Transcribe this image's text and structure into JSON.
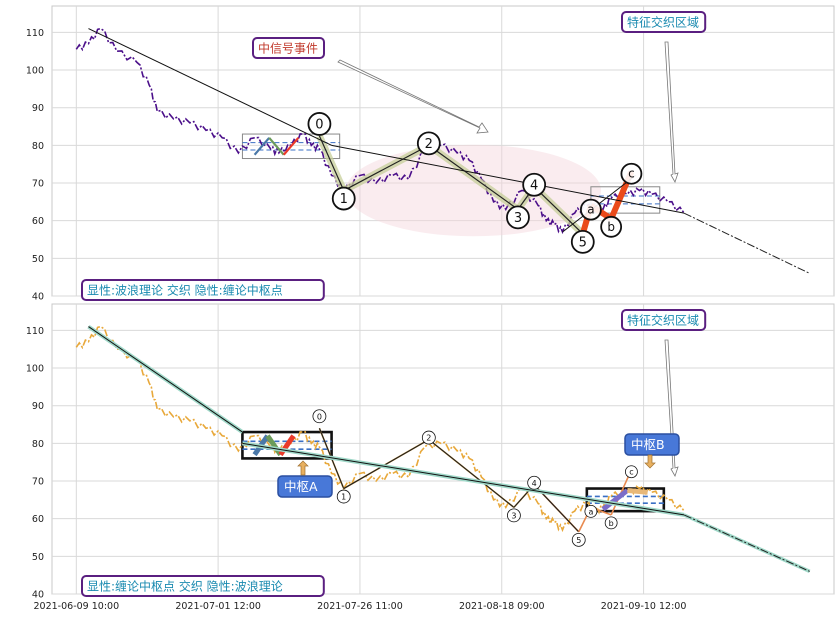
{
  "chart_data": [
    {
      "type": "line",
      "panel": "top",
      "ylim": [
        40,
        117
      ],
      "yticks": [
        40,
        50,
        60,
        70,
        80,
        90,
        100,
        110
      ],
      "grid": true,
      "price_color": "#4b0f8a",
      "price": [
        [
          0,
          105.5
        ],
        [
          3,
          107
        ],
        [
          6,
          111
        ],
        [
          10,
          105
        ],
        [
          15,
          102
        ],
        [
          18,
          96
        ],
        [
          20,
          89
        ],
        [
          24,
          87
        ],
        [
          28,
          86
        ],
        [
          32,
          84
        ],
        [
          36,
          82
        ],
        [
          40,
          78
        ],
        [
          44,
          82
        ],
        [
          48,
          79
        ],
        [
          50,
          78
        ],
        [
          53,
          80
        ],
        [
          56,
          83
        ],
        [
          58,
          80
        ],
        [
          60,
          79
        ],
        [
          63,
          72
        ],
        [
          66,
          68
        ],
        [
          70,
          72
        ],
        [
          74,
          70
        ],
        [
          78,
          72
        ],
        [
          82,
          71
        ],
        [
          86,
          79
        ],
        [
          90,
          80
        ],
        [
          94,
          78
        ],
        [
          97,
          76
        ],
        [
          100,
          71
        ],
        [
          103,
          65
        ],
        [
          106,
          63
        ],
        [
          110,
          68
        ],
        [
          114,
          64
        ],
        [
          116,
          60
        ],
        [
          118,
          59
        ],
        [
          120,
          57
        ],
        [
          123,
          62
        ],
        [
          126,
          64
        ],
        [
          128,
          62
        ],
        [
          130,
          63
        ],
        [
          132,
          66
        ],
        [
          136,
          67
        ],
        [
          139,
          68
        ],
        [
          142,
          67
        ],
        [
          146,
          65
        ],
        [
          150,
          62
        ]
      ],
      "trend_lines": [
        {
          "from": [
            3,
            111
          ],
          "to": [
            63,
            80
          ],
          "color": "#111111"
        },
        {
          "from": [
            63,
            80
          ],
          "to": [
            150,
            62
          ],
          "color": "#111111"
        },
        {
          "from": [
            120,
            57
          ],
          "to": [
            138,
            72
          ],
          "color": "#111111"
        }
      ],
      "projection": {
        "from": [
          150,
          62
        ],
        "to": [
          181,
          46
        ]
      },
      "wave_points": [
        {
          "label": "0",
          "x": 60,
          "y": 82.5
        },
        {
          "label": "1",
          "x": 66,
          "y": 68
        },
        {
          "label": "2",
          "x": 87,
          "y": 80
        },
        {
          "label": "3",
          "x": 109,
          "y": 63
        },
        {
          "label": "4",
          "x": 113,
          "y": 69
        },
        {
          "label": "5",
          "x": 125,
          "y": 56.5
        }
      ],
      "abc_points": [
        {
          "label": "a",
          "x": 127,
          "y": 64
        },
        {
          "label": "b",
          "x": 132,
          "y": 60.5
        },
        {
          "label": "c",
          "x": 137,
          "y": 73
        }
      ],
      "zhongshu_boxes": [
        {
          "x0": 41,
          "x1": 65,
          "y0": 76.5,
          "y1": 83
        },
        {
          "x0": 127,
          "x1": 144,
          "y0": 62,
          "y1": 69
        }
      ],
      "annotations": {
        "mid_signal": "中信号事件",
        "feature_zone": "特征交织区域",
        "explicit_label": "显性:波浪理论 交织 隐性:缠论中枢点"
      }
    },
    {
      "type": "line",
      "panel": "bottom",
      "ylim": [
        40,
        117
      ],
      "yticks": [
        40,
        50,
        60,
        70,
        80,
        90,
        100,
        110
      ],
      "grid": true,
      "price_color": "#e8a83a",
      "price": [
        [
          0,
          105.5
        ],
        [
          3,
          107
        ],
        [
          6,
          111
        ],
        [
          10,
          105
        ],
        [
          15,
          102
        ],
        [
          18,
          96
        ],
        [
          20,
          89
        ],
        [
          24,
          87
        ],
        [
          28,
          86
        ],
        [
          32,
          84
        ],
        [
          36,
          82
        ],
        [
          40,
          78
        ],
        [
          44,
          82
        ],
        [
          48,
          79
        ],
        [
          50,
          78
        ],
        [
          53,
          80
        ],
        [
          56,
          83
        ],
        [
          58,
          80
        ],
        [
          60,
          79
        ],
        [
          63,
          72
        ],
        [
          66,
          68
        ],
        [
          70,
          72
        ],
        [
          74,
          70
        ],
        [
          78,
          72
        ],
        [
          82,
          71
        ],
        [
          86,
          79
        ],
        [
          90,
          80
        ],
        [
          94,
          78
        ],
        [
          97,
          76
        ],
        [
          100,
          71
        ],
        [
          103,
          65
        ],
        [
          106,
          63
        ],
        [
          110,
          68
        ],
        [
          114,
          64
        ],
        [
          116,
          60
        ],
        [
          118,
          59
        ],
        [
          120,
          57
        ],
        [
          123,
          62
        ],
        [
          126,
          64
        ],
        [
          128,
          62
        ],
        [
          130,
          63
        ],
        [
          132,
          66
        ],
        [
          136,
          67
        ],
        [
          139,
          68
        ],
        [
          142,
          67
        ],
        [
          146,
          65
        ],
        [
          150,
          62
        ]
      ],
      "trend_lines": [
        {
          "from": [
            3,
            111
          ],
          "to": [
            41,
            83
          ],
          "color": "#111111"
        },
        {
          "from": [
            41,
            80
          ],
          "to": [
            150,
            61
          ],
          "color": "#111111"
        }
      ],
      "projection": {
        "from": [
          150,
          61
        ],
        "to": [
          181,
          46
        ]
      },
      "wave_points": [
        {
          "label": "0",
          "x": 60,
          "y": 84
        },
        {
          "label": "1",
          "x": 66,
          "y": 68
        },
        {
          "label": "2",
          "x": 87,
          "y": 81
        },
        {
          "label": "3",
          "x": 108,
          "y": 63
        },
        {
          "label": "4",
          "x": 113,
          "y": 69
        },
        {
          "label": "5",
          "x": 124,
          "y": 56.5
        }
      ],
      "abc_points": [
        {
          "label": "a",
          "x": 127,
          "y": 63
        },
        {
          "label": "b",
          "x": 132,
          "y": 61
        },
        {
          "label": "c",
          "x": 137,
          "y": 73
        }
      ],
      "zhongshu_boxes": [
        {
          "x0": 41,
          "x1": 63,
          "y0": 76,
          "y1": 83,
          "label": "中枢A"
        },
        {
          "x0": 126,
          "x1": 145,
          "y0": 62,
          "y1": 68,
          "label": "中枢B"
        }
      ],
      "annotations": {
        "feature_zone": "特征交织区域",
        "explicit_label": "显性:缠论中枢点 交织 隐性:波浪理论"
      }
    }
  ],
  "x_axis": {
    "ticks": [
      {
        "x": 0,
        "label": "2021-06-09 10:00"
      },
      {
        "x": 35,
        "label": "2021-07-01 12:00"
      },
      {
        "x": 70,
        "label": "2021-07-26 11:00"
      },
      {
        "x": 105,
        "label": "2021-08-18 09:00"
      },
      {
        "x": 140,
        "label": "2021-09-10 12:00"
      }
    ],
    "xlim": [
      -6,
      187
    ]
  }
}
